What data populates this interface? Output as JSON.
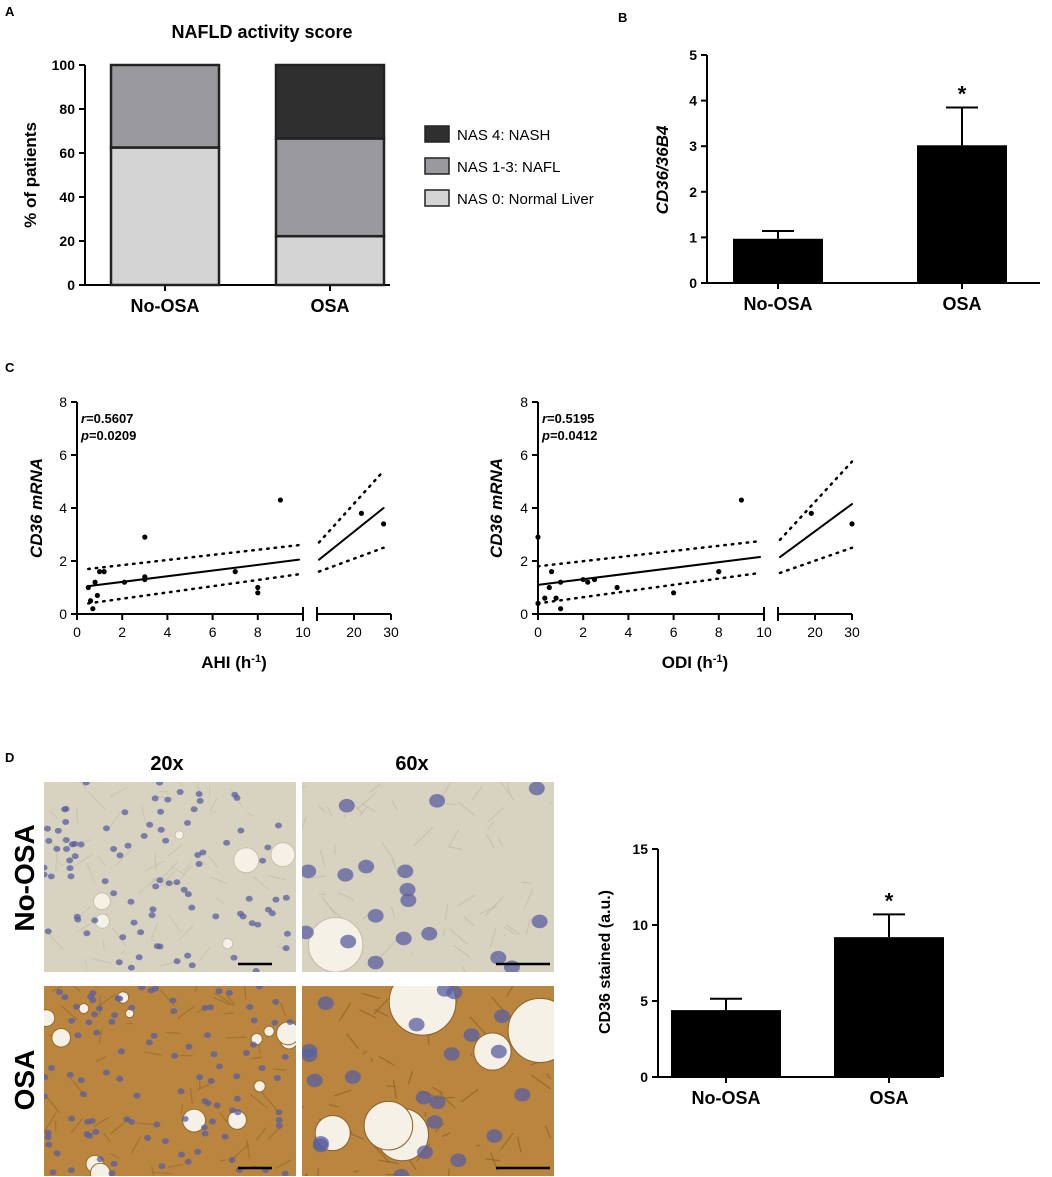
{
  "panels": {
    "A": "A",
    "B": "B",
    "C": "C",
    "D": "D"
  },
  "chart_data": [
    {
      "id": "A",
      "type": "bar",
      "stacked": true,
      "title": "NAFLD activity score",
      "ylabel": "% of patients",
      "xlabel": "",
      "ylim": [
        0,
        100
      ],
      "yticks": [
        "0",
        "20",
        "40",
        "60",
        "80",
        "100"
      ],
      "categories": [
        "No-OSA",
        "OSA"
      ],
      "series": [
        {
          "name": "NAS 0: Normal Liver",
          "values": [
            62.5,
            22.2
          ],
          "color": "#d4d4d4"
        },
        {
          "name": "NAS 1-3: NAFL",
          "values": [
            37.5,
            44.4
          ],
          "color": "#9a9a9e"
        },
        {
          "name": "NAS 4: NASH",
          "values": [
            0,
            33.4
          ],
          "color": "#2f2f2f"
        }
      ],
      "legend_order": [
        "NAS 4: NASH",
        "NAS 1-3: NAFL",
        "NAS 0: Normal Liver"
      ],
      "legend_position": "right"
    },
    {
      "id": "B",
      "type": "bar",
      "ylabel": "CD36/36B4",
      "xlabel": "",
      "ylim": [
        0,
        5
      ],
      "yticks": [
        "0",
        "1",
        "2",
        "3",
        "4",
        "5"
      ],
      "categories": [
        "No-OSA",
        "OSA"
      ],
      "values": [
        0.97,
        3.02
      ],
      "errors": [
        0.17,
        0.83
      ],
      "annotations": [
        "",
        "*"
      ]
    },
    {
      "id": "C1",
      "type": "scatter",
      "ylabel": "CD36 mRNA",
      "xlabel": "AHI (h",
      "xlabel_sup": "-1",
      "xlabel_end": ")",
      "stat_r": "=0.5607",
      "stat_p": "=0.0209",
      "stat_r_label": "r",
      "stat_p_label": "p",
      "ylim": [
        0,
        8
      ],
      "yticks": [
        "0",
        "2",
        "4",
        "6",
        "8"
      ],
      "xticks_left": [
        "0",
        "2",
        "4",
        "6",
        "8",
        "10"
      ],
      "xticks_right": [
        "10",
        "20",
        "30"
      ],
      "x_break": [
        10,
        10
      ],
      "x_right_range": [
        10,
        30
      ],
      "points": [
        [
          0.5,
          1.0
        ],
        [
          0.6,
          0.5
        ],
        [
          0.7,
          0.2
        ],
        [
          0.8,
          1.2
        ],
        [
          0.9,
          0.7
        ],
        [
          1.0,
          1.6
        ],
        [
          1.2,
          1.6
        ],
        [
          2.1,
          1.2
        ],
        [
          3.0,
          1.3
        ],
        [
          3.0,
          1.4
        ],
        [
          3.0,
          2.9
        ],
        [
          7.0,
          1.6
        ],
        [
          8.0,
          0.8
        ],
        [
          8.0,
          1.0
        ],
        [
          9.0,
          4.3
        ],
        [
          22.0,
          3.8
        ],
        [
          28.0,
          3.4
        ]
      ],
      "fit": {
        "left": [
          [
            0.5,
            1.05
          ],
          [
            10,
            2.05
          ]
        ],
        "right": [
          [
            10,
            2.05
          ],
          [
            28,
            4.0
          ]
        ]
      },
      "ci_upper": {
        "left": [
          [
            0.5,
            1.7
          ],
          [
            10,
            2.6
          ]
        ],
        "right": [
          [
            10,
            2.7
          ],
          [
            28,
            5.4
          ]
        ]
      },
      "ci_lower": {
        "left": [
          [
            0.5,
            0.4
          ],
          [
            10,
            1.5
          ]
        ],
        "right": [
          [
            10,
            1.6
          ],
          [
            28,
            2.5
          ]
        ]
      }
    },
    {
      "id": "C2",
      "type": "scatter",
      "ylabel": "CD36 mRNA",
      "xlabel": "ODI (h",
      "xlabel_sup": "-1",
      "xlabel_end": ")",
      "stat_r": "=0.5195",
      "stat_p": "=0.0412",
      "stat_r_label": "r",
      "stat_p_label": "p",
      "ylim": [
        0,
        8
      ],
      "yticks": [
        "0",
        "2",
        "4",
        "6",
        "8"
      ],
      "xticks_left": [
        "0",
        "2",
        "4",
        "6",
        "8",
        "10"
      ],
      "xticks_right": [
        "10",
        "20",
        "30"
      ],
      "x_break": [
        10,
        10
      ],
      "x_right_range": [
        10,
        30
      ],
      "points": [
        [
          0.0,
          2.9
        ],
        [
          0.0,
          0.4
        ],
        [
          0.3,
          0.6
        ],
        [
          0.5,
          1.0
        ],
        [
          0.6,
          1.6
        ],
        [
          0.8,
          0.6
        ],
        [
          1.0,
          0.2
        ],
        [
          1.0,
          1.2
        ],
        [
          2.0,
          1.3
        ],
        [
          2.2,
          1.2
        ],
        [
          2.5,
          1.3
        ],
        [
          3.5,
          1.0
        ],
        [
          6.0,
          0.8
        ],
        [
          8.0,
          1.6
        ],
        [
          9.0,
          4.3
        ],
        [
          19.0,
          3.8
        ],
        [
          30.0,
          3.4
        ]
      ],
      "fit": {
        "left": [
          [
            0,
            1.1
          ],
          [
            10,
            2.15
          ]
        ],
        "right": [
          [
            10,
            2.15
          ],
          [
            30,
            4.15
          ]
        ]
      },
      "ci_upper": {
        "left": [
          [
            0,
            1.8
          ],
          [
            10,
            2.75
          ]
        ],
        "right": [
          [
            10,
            2.8
          ],
          [
            30,
            5.75
          ]
        ]
      },
      "ci_lower": {
        "left": [
          [
            0,
            0.4
          ],
          [
            10,
            1.55
          ]
        ],
        "right": [
          [
            10,
            1.55
          ],
          [
            30,
            2.5
          ]
        ]
      }
    },
    {
      "id": "D",
      "type": "bar",
      "ylabel": "CD36 stained (a.u.)",
      "xlabel": "",
      "ylim": [
        0,
        15
      ],
      "yticks": [
        "0",
        "5",
        "10",
        "15"
      ],
      "categories": [
        "No-OSA",
        "OSA"
      ],
      "values": [
        4.4,
        9.2
      ],
      "errors": [
        0.75,
        1.5
      ],
      "annotations": [
        "",
        "*"
      ]
    }
  ],
  "micrographs": {
    "col_labels": [
      "20x",
      "60x"
    ],
    "row_labels": [
      "No-OSA",
      "OSA"
    ]
  },
  "colors": {
    "bar": "#000000",
    "nash": "#2f2f2f",
    "nafl": "#9a9a9e",
    "normal": "#d4d4d4",
    "tissue_noosa": "#d8d2c0",
    "tissue_osa": "#b9853f",
    "nuclei": "#5a5fa0"
  }
}
